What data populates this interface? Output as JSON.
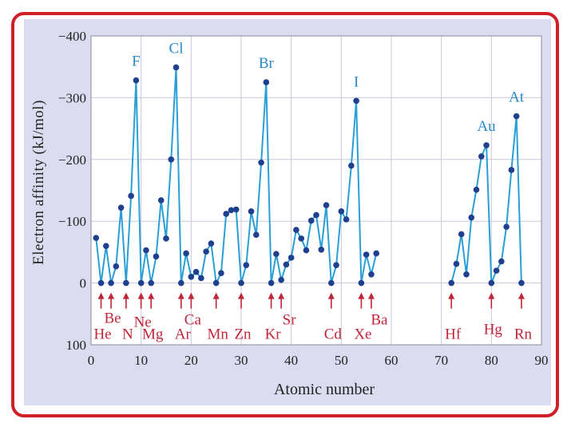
{
  "chart_data": {
    "type": "line",
    "xlabel": "Atomic number",
    "ylabel": "Electron affinity (kJ/mol)",
    "xlim": [
      0,
      90
    ],
    "ylim": [
      100,
      -400
    ],
    "x_ticks": [
      "0",
      "10",
      "20",
      "30",
      "40",
      "50",
      "60",
      "70",
      "80",
      "90"
    ],
    "y_ticks": [
      {
        "value": -400,
        "label": "−400"
      },
      {
        "value": -300,
        "label": "−300"
      },
      {
        "value": -200,
        "label": "−200"
      },
      {
        "value": -100,
        "label": "−100"
      },
      {
        "value": 0,
        "label": "0"
      },
      {
        "value": 100,
        "label": "100"
      }
    ],
    "grid": true,
    "series": [
      {
        "color": "#2a9fd6",
        "segments": [
          [
            [
              1,
              -73
            ],
            [
              2,
              0
            ],
            [
              3,
              -60
            ],
            [
              4,
              0
            ],
            [
              5,
              -27
            ],
            [
              6,
              -122
            ],
            [
              7,
              0
            ],
            [
              8,
              -141
            ],
            [
              9,
              -328
            ],
            [
              10,
              0
            ],
            [
              11,
              -53
            ],
            [
              12,
              0
            ],
            [
              13,
              -43
            ],
            [
              14,
              -134
            ],
            [
              15,
              -72
            ],
            [
              16,
              -200
            ],
            [
              17,
              -349
            ],
            [
              18,
              0
            ],
            [
              19,
              -48
            ],
            [
              20,
              -10
            ],
            [
              21,
              -18
            ],
            [
              22,
              -8
            ],
            [
              23,
              -51
            ],
            [
              24,
              -64
            ],
            [
              25,
              0
            ],
            [
              26,
              -16
            ],
            [
              27,
              -112
            ],
            [
              28,
              -118
            ],
            [
              29,
              -119
            ],
            [
              30,
              0
            ],
            [
              31,
              -29
            ],
            [
              32,
              -116
            ],
            [
              33,
              -78
            ],
            [
              34,
              -195
            ],
            [
              35,
              -325
            ],
            [
              36,
              0
            ],
            [
              37,
              -47
            ],
            [
              38,
              -5
            ],
            [
              39,
              -30
            ],
            [
              40,
              -41
            ],
            [
              41,
              -86
            ],
            [
              42,
              -72
            ],
            [
              43,
              -53
            ],
            [
              44,
              -101
            ],
            [
              45,
              -110
            ],
            [
              46,
              -54
            ],
            [
              47,
              -126
            ],
            [
              48,
              0
            ],
            [
              49,
              -29
            ],
            [
              50,
              -116
            ],
            [
              51,
              -103
            ],
            [
              52,
              -190
            ],
            [
              53,
              -295
            ],
            [
              54,
              0
            ],
            [
              55,
              -46
            ],
            [
              56,
              -14
            ],
            [
              57,
              -48
            ]
          ],
          [
            [
              72,
              0
            ],
            [
              73,
              -31
            ],
            [
              74,
              -79
            ],
            [
              75,
              -14
            ],
            [
              76,
              -106
            ],
            [
              77,
              -151
            ],
            [
              78,
              -205
            ],
            [
              79,
              -223
            ],
            [
              80,
              0
            ],
            [
              81,
              -20
            ],
            [
              82,
              -35
            ],
            [
              83,
              -91
            ],
            [
              84,
              -183
            ],
            [
              85,
              -270
            ],
            [
              86,
              0
            ]
          ]
        ]
      }
    ],
    "top_labels": [
      {
        "symbol": "F",
        "z": 9,
        "value": -328
      },
      {
        "symbol": "Cl",
        "z": 17,
        "value": -349
      },
      {
        "symbol": "Br",
        "z": 35,
        "value": -325
      },
      {
        "symbol": "I",
        "z": 53,
        "value": -295
      },
      {
        "symbol": "Au",
        "z": 79,
        "value": -223
      },
      {
        "symbol": "At",
        "z": 85,
        "value": -270
      }
    ],
    "noble_labels": [
      {
        "symbol": "He",
        "z": 2
      },
      {
        "symbol": "Be",
        "z": 4
      },
      {
        "symbol": "N",
        "z": 7
      },
      {
        "symbol": "Ne",
        "z": 10
      },
      {
        "symbol": "Mg",
        "z": 12
      },
      {
        "symbol": "Ar",
        "z": 18
      },
      {
        "symbol": "Ca",
        "z": 20
      },
      {
        "symbol": "Mn",
        "z": 25
      },
      {
        "symbol": "Zn",
        "z": 30
      },
      {
        "symbol": "Kr",
        "z": 36
      },
      {
        "symbol": "Sr",
        "z": 38
      },
      {
        "symbol": "Cd",
        "z": 48
      },
      {
        "symbol": "Xe",
        "z": 54
      },
      {
        "symbol": "Ba",
        "z": 56
      },
      {
        "symbol": "Hf",
        "z": 72
      },
      {
        "symbol": "Hg",
        "z": 80
      },
      {
        "symbol": "Rn",
        "z": 86
      }
    ],
    "colors": {
      "line": "#2a9fd6",
      "point": "#1f3f8f",
      "arrow": "#c0263a",
      "frame": "#d01f26",
      "panel": "#dcdcf0",
      "plot_bg": "#ffffff"
    }
  }
}
